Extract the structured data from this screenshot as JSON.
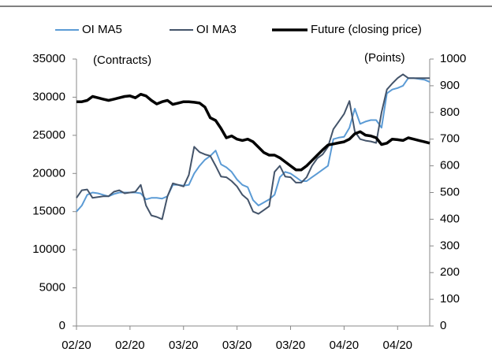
{
  "chart_data": {
    "type": "line",
    "ylabel": "(Contracts)",
    "y2label": "(Points)",
    "categories": [
      "02/20",
      null,
      null,
      null,
      null,
      null,
      null,
      null,
      null,
      null,
      "02/20",
      null,
      null,
      null,
      null,
      null,
      null,
      null,
      null,
      null,
      "03/20",
      null,
      null,
      null,
      null,
      null,
      null,
      null,
      null,
      null,
      "03/20",
      null,
      null,
      null,
      null,
      null,
      null,
      null,
      null,
      null,
      "03/20",
      null,
      null,
      null,
      null,
      null,
      null,
      null,
      null,
      null,
      "04/20",
      null,
      null,
      null,
      null,
      null,
      null,
      null,
      null,
      null,
      "04/20",
      null,
      null,
      null,
      null,
      null,
      null
    ],
    "series": [
      {
        "name": "OI MA5",
        "color": "#5b9bd5",
        "values": [
          15000,
          15800,
          17200,
          17500,
          17400,
          17200,
          17000,
          17300,
          17500,
          17500,
          17500,
          17500,
          17400,
          16600,
          16800,
          16800,
          16700,
          17000,
          18500,
          18500,
          18400,
          18500,
          20000,
          21000,
          21800,
          22300,
          23000,
          21200,
          20800,
          20200,
          19200,
          18500,
          18200,
          16500,
          15800,
          16200,
          16600,
          17200,
          19500,
          20200,
          20000,
          19500,
          19000,
          19000,
          19500,
          20000,
          20500,
          21000,
          24500,
          24700,
          24800,
          26000,
          28500,
          26500,
          26800,
          27000,
          27000,
          26000,
          30500,
          31000,
          31200,
          31500,
          32500,
          32500,
          32400,
          32300,
          32000
        ]
      },
      {
        "name": "OI MA3",
        "color": "#44546a",
        "values": [
          16800,
          17800,
          17900,
          16800,
          16900,
          17000,
          17000,
          17600,
          17800,
          17400,
          17500,
          17600,
          18500,
          15800,
          14500,
          14300,
          14000,
          17000,
          18700,
          18500,
          18300,
          19800,
          23500,
          22800,
          22500,
          22300,
          21000,
          19600,
          19500,
          19000,
          18300,
          17200,
          16600,
          15000,
          14700,
          15200,
          15700,
          20200,
          21000,
          19600,
          19500,
          18800,
          18800,
          19500,
          21000,
          22000,
          22500,
          23500,
          25800,
          26800,
          27800,
          29500,
          25500,
          24500,
          24300,
          24200,
          24000,
          28000,
          31000,
          31800,
          32500,
          33000,
          32500,
          32500,
          32500,
          32500,
          32500
        ]
      },
      {
        "name": "Future (closing price)",
        "color": "#000000",
        "axis": "y2",
        "values": [
          840,
          840,
          845,
          860,
          855,
          850,
          845,
          850,
          855,
          860,
          862,
          855,
          868,
          862,
          845,
          832,
          840,
          845,
          830,
          835,
          840,
          840,
          838,
          835,
          820,
          780,
          770,
          740,
          705,
          712,
          700,
          695,
          700,
          690,
          670,
          650,
          640,
          640,
          630,
          615,
          600,
          585,
          585,
          600,
          620,
          640,
          660,
          678,
          682,
          686,
          690,
          700,
          720,
          728,
          715,
          712,
          705,
          680,
          685,
          700,
          698,
          695,
          705,
          700,
          695,
          690,
          685
        ]
      }
    ],
    "ylim": [
      0,
      35000
    ],
    "yticks": [
      0,
      5000,
      10000,
      15000,
      20000,
      25000,
      30000,
      35000
    ],
    "y2lim": [
      0,
      1000
    ],
    "y2ticks": [
      0,
      100,
      200,
      300,
      400,
      500,
      600,
      700,
      800,
      900,
      1000
    ],
    "legend": "top"
  }
}
